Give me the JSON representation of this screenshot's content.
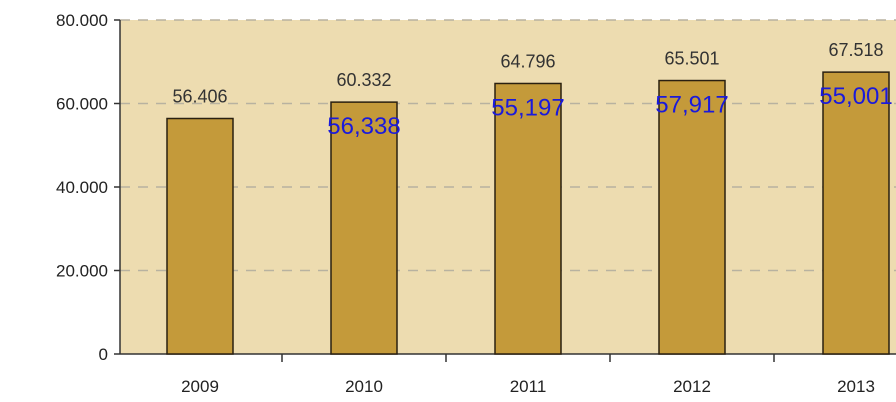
{
  "chart_data": {
    "type": "bar",
    "categories": [
      "2009",
      "2010",
      "2011",
      "2012",
      "2013"
    ],
    "values": [
      56406,
      60332,
      64796,
      65501,
      67518
    ],
    "value_labels": [
      "56.406",
      "60.332",
      "64.796",
      "65.501",
      "67.518"
    ],
    "overlay_labels": [
      "",
      "56,338",
      "55,197",
      "57,917",
      "55,001"
    ],
    "ylim": [
      0,
      80000
    ],
    "yticks": [
      0,
      20000,
      40000,
      60000,
      80000
    ],
    "ytick_labels": [
      "0",
      "20.000",
      "40.000",
      "60.000",
      "80.000"
    ],
    "grid": true,
    "grid_style": "dashed",
    "colors": {
      "plot_background": "#eddcb0",
      "bar_fill": "#c49a3a",
      "bar_stroke": "#2a2010",
      "grid": "#b8b2a0",
      "overlay_text": "#1a1adb"
    }
  }
}
